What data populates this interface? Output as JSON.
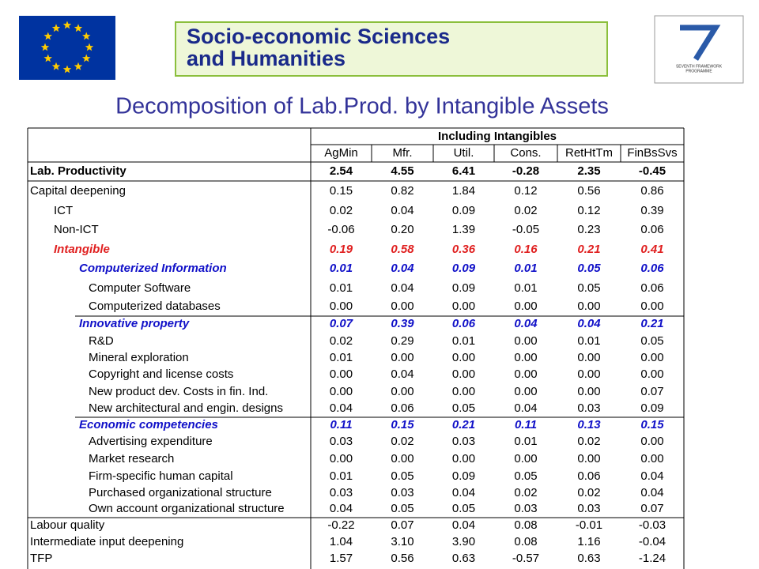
{
  "header": {
    "banner": [
      "Socio-economic Sciences",
      "and Humanities"
    ],
    "logo_text": [
      "SEVENTH FRAMEWORK",
      "PROGRAMME"
    ]
  },
  "title": "Decomposition of Lab.Prod. by Intangible Assets",
  "table": {
    "group_header": "Including Intangibles",
    "columns": [
      "AgMin",
      "Mfr.",
      "Util.",
      "Cons.",
      "RetHtTm",
      "FinBsSvs"
    ],
    "rows": [
      {
        "label": "Lab. Productivity",
        "values": [
          "2.54",
          "4.55",
          "6.41",
          "-0.28",
          "2.35",
          "-0.45"
        ]
      },
      {
        "label": "Capital deepening",
        "values": [
          "0.15",
          "0.82",
          "1.84",
          "0.12",
          "0.56",
          "0.86"
        ]
      },
      {
        "label": "ICT",
        "values": [
          "0.02",
          "0.04",
          "0.09",
          "0.02",
          "0.12",
          "0.39"
        ]
      },
      {
        "label": "Non-ICT",
        "values": [
          "-0.06",
          "0.20",
          "1.39",
          "-0.05",
          "0.23",
          "0.06"
        ]
      },
      {
        "label": "Intangible",
        "values": [
          "0.19",
          "0.58",
          "0.36",
          "0.16",
          "0.21",
          "0.41"
        ]
      },
      {
        "label": "Computerized Information",
        "values": [
          "0.01",
          "0.04",
          "0.09",
          "0.01",
          "0.05",
          "0.06"
        ]
      },
      {
        "label": "Computer Software",
        "values": [
          "0.01",
          "0.04",
          "0.09",
          "0.01",
          "0.05",
          "0.06"
        ]
      },
      {
        "label": "Computerized databases",
        "values": [
          "0.00",
          "0.00",
          "0.00",
          "0.00",
          "0.00",
          "0.00"
        ]
      },
      {
        "label": "Innovative property",
        "values": [
          "0.07",
          "0.39",
          "0.06",
          "0.04",
          "0.04",
          "0.21"
        ]
      },
      {
        "label": "R&D",
        "values": [
          "0.02",
          "0.29",
          "0.01",
          "0.00",
          "0.01",
          "0.05"
        ]
      },
      {
        "label": "Mineral exploration",
        "values": [
          "0.01",
          "0.00",
          "0.00",
          "0.00",
          "0.00",
          "0.00"
        ]
      },
      {
        "label": "Copyright and license costs",
        "values": [
          "0.00",
          "0.04",
          "0.00",
          "0.00",
          "0.00",
          "0.00"
        ]
      },
      {
        "label": "New product dev. Costs in fin. Ind.",
        "values": [
          "0.00",
          "0.00",
          "0.00",
          "0.00",
          "0.00",
          "0.07"
        ]
      },
      {
        "label": "New architectural and engin. designs",
        "values": [
          "0.04",
          "0.06",
          "0.05",
          "0.04",
          "0.03",
          "0.09"
        ]
      },
      {
        "label": "Economic competencies",
        "values": [
          "0.11",
          "0.15",
          "0.21",
          "0.11",
          "0.13",
          "0.15"
        ]
      },
      {
        "label": "Advertising expenditure",
        "values": [
          "0.03",
          "0.02",
          "0.03",
          "0.01",
          "0.02",
          "0.00"
        ]
      },
      {
        "label": "Market research",
        "values": [
          "0.00",
          "0.00",
          "0.00",
          "0.00",
          "0.00",
          "0.00"
        ]
      },
      {
        "label": "Firm-specific human capital",
        "values": [
          "0.01",
          "0.05",
          "0.09",
          "0.05",
          "0.06",
          "0.04"
        ]
      },
      {
        "label": "Purchased organizational structure",
        "values": [
          "0.03",
          "0.03",
          "0.04",
          "0.02",
          "0.02",
          "0.04"
        ]
      },
      {
        "label": "Own account organizational structure",
        "values": [
          "0.04",
          "0.05",
          "0.05",
          "0.03",
          "0.03",
          "0.07"
        ]
      },
      {
        "label": "Labour quality",
        "values": [
          "-0.22",
          "0.07",
          "0.04",
          "0.08",
          "-0.01",
          "-0.03"
        ]
      },
      {
        "label": "Intermediate input deepening",
        "values": [
          "1.04",
          "3.10",
          "3.90",
          "0.08",
          "1.16",
          "-0.04"
        ]
      },
      {
        "label": "TFP",
        "values": [
          "1.57",
          "0.56",
          "0.63",
          "-0.57",
          "0.63",
          "-1.24"
        ]
      }
    ]
  }
}
